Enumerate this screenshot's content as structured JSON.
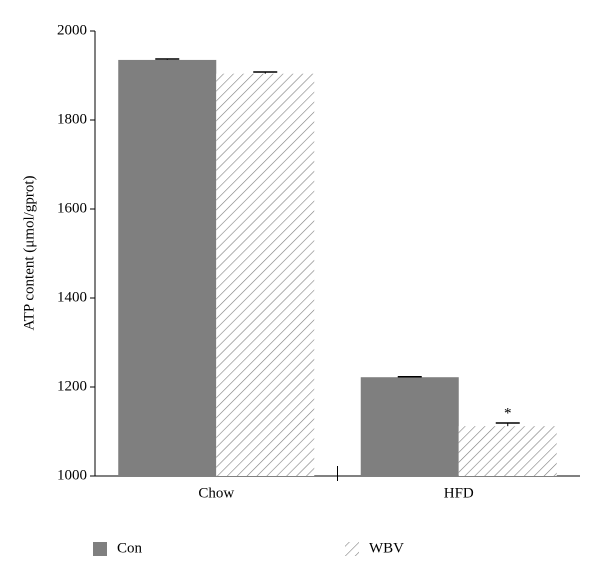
{
  "chart_data": {
    "type": "bar",
    "y_label": "ATP content (μmol/gprot)",
    "categories": [
      "Chow",
      "HFD"
    ],
    "series": [
      {
        "name": "Con",
        "color": "#7f7f7f",
        "pattern": "solid",
        "values": [
          1935,
          1222
        ],
        "errors": [
          2,
          1
        ]
      },
      {
        "name": "WBV",
        "color": "#7f7f7f",
        "pattern": "hatch",
        "values": [
          1904,
          1112
        ],
        "errors": [
          4,
          7
        ],
        "annotations": [
          null,
          "*"
        ]
      }
    ],
    "ylim": [
      1000,
      2000
    ],
    "yticks": [
      1000,
      1200,
      1400,
      1600,
      1800,
      2000
    ],
    "grid": false,
    "legend": "bottom"
  }
}
